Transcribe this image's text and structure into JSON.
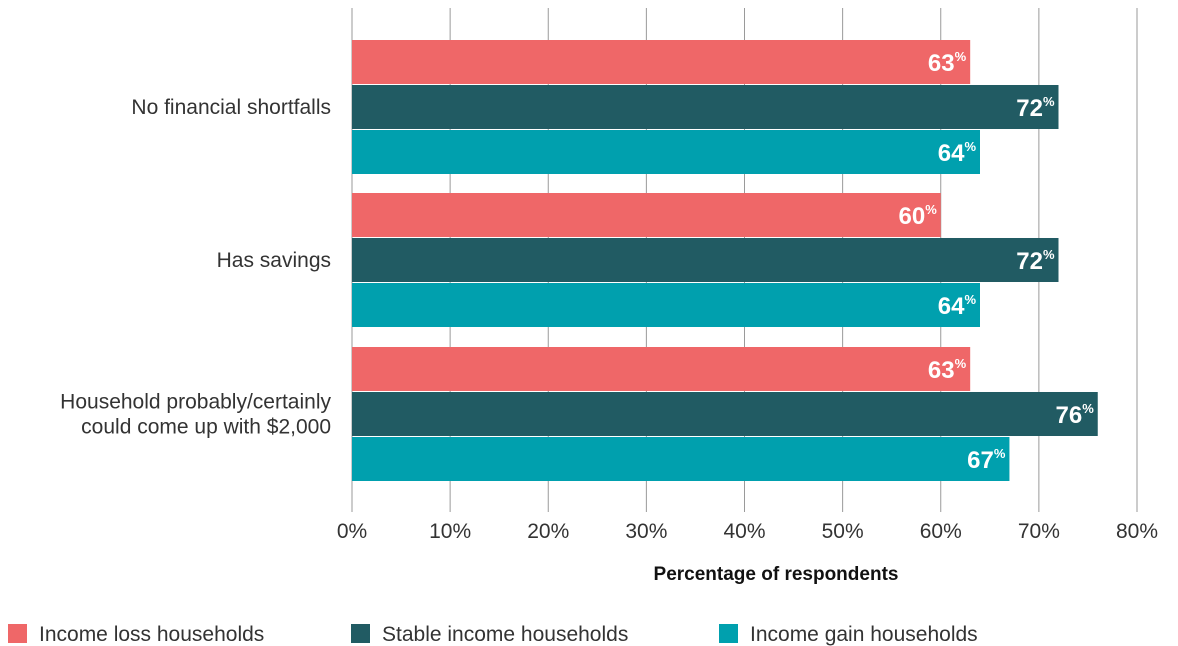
{
  "chart_data": {
    "type": "bar",
    "orientation": "horizontal",
    "categories": [
      [
        "No financial shortfalls"
      ],
      [
        "Has savings"
      ],
      [
        "Household probably/certainly",
        "could come up with $2,000"
      ]
    ],
    "series": [
      {
        "name": "Income loss households",
        "color": "#EF6768",
        "values": [
          63,
          60,
          63
        ]
      },
      {
        "name": "Stable income households",
        "color": "#215B63",
        "values": [
          72,
          72,
          76
        ]
      },
      {
        "name": "Income gain households",
        "color": "#00A0AE",
        "values": [
          64,
          64,
          67
        ]
      }
    ],
    "value_suffix": "%",
    "xlim": [
      0,
      80
    ],
    "xticks": [
      0,
      10,
      20,
      30,
      40,
      50,
      60,
      70,
      80
    ],
    "tick_suffix": "%",
    "xlabel": "Percentage of respondents",
    "grid": true,
    "legend_position": "bottom"
  }
}
